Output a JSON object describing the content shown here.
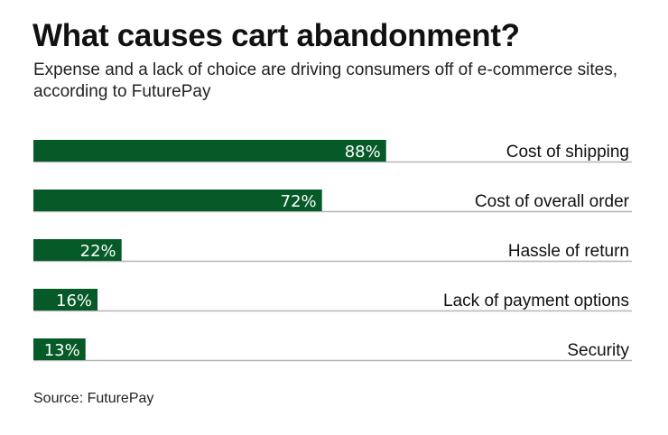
{
  "chart_data": {
    "type": "bar",
    "orientation": "horizontal",
    "title": "What causes cart abandonment?",
    "subtitle": "Expense and a lack of choice are driving consumers off of e-commerce sites, according to FuturePay",
    "categories": [
      "Cost of shipping",
      "Cost of overall order",
      "Hassle of return",
      "Lack of payment options",
      "Security"
    ],
    "values": [
      88,
      72,
      22,
      16,
      13
    ],
    "value_labels": [
      "88%",
      "72%",
      "22%",
      "16%",
      "13%"
    ],
    "xlim": [
      0,
      100
    ],
    "grid": false,
    "bar_color": "#055a28",
    "source": "Source: FuturePay"
  }
}
